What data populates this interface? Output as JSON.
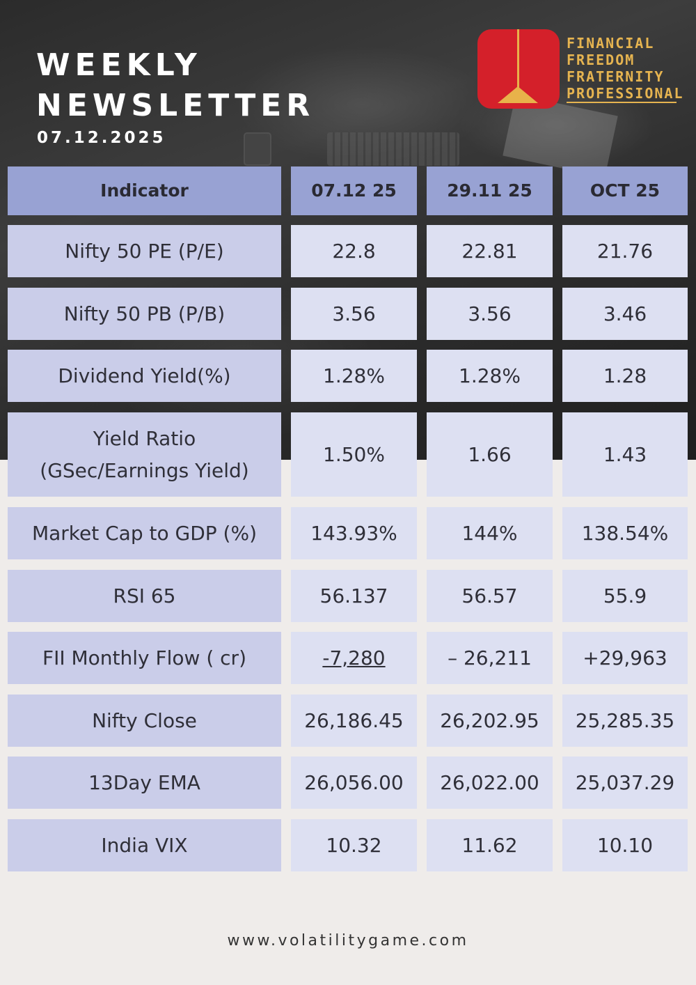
{
  "header": {
    "title_line1": "WEEKLY",
    "title_line2": "NEWSLETTER",
    "date": "07.12.2025"
  },
  "brand": {
    "lines": [
      "FINANCIAL",
      "FREEDOM",
      "FRATERNITY",
      "PROFESSIONAL"
    ],
    "logo_color": "#d4202a",
    "accent_color": "#e6b450"
  },
  "table": {
    "columns": [
      "Indicator",
      "07.12 25",
      "29.11 25",
      "OCT 25"
    ],
    "rows": [
      {
        "label": "Nifty 50 PE (P/E)",
        "v1": "22.8",
        "v2": "22.81",
        "v3": "21.76"
      },
      {
        "label": "Nifty 50 PB (P/B)",
        "v1": "3.56",
        "v2": "3.56",
        "v3": "3.46"
      },
      {
        "label": "Dividend Yield(%)",
        "v1": "1.28%",
        "v2": "1.28%",
        "v3": "1.28"
      },
      {
        "label": "Yield Ratio",
        "label2": "(GSec/Earnings Yield)",
        "v1": "1.50%",
        "v2": "1.66",
        "v3": "1.43"
      },
      {
        "label": "Market Cap to GDP (%)",
        "v1": "143.93%",
        "v2": "144%",
        "v3": "138.54%"
      },
      {
        "label": "RSI 65",
        "v1": "56.137",
        "v2": "56.57",
        "v3": "55.9"
      },
      {
        "label": "FII Monthly Flow ( cr)",
        "v1": "-7,280",
        "v2": "– 26,211",
        "v3": "+29,963"
      },
      {
        "label": "Nifty Close",
        "v1": "26,186.45",
        "v2": "26,202.95",
        "v3": "25,285.35"
      },
      {
        "label": "13Day EMA",
        "v1": "26,056.00",
        "v2": "26,022.00",
        "v3": "25,037.29"
      },
      {
        "label": "India VIX",
        "v1": "10.32",
        "v2": "11.62",
        "v3": "10.10"
      }
    ]
  },
  "footer": {
    "website": "www.volatilitygame.com"
  },
  "colors": {
    "header_cell": "#98a2d3",
    "label_cell": "#cacde9",
    "value_cell": "#dde0f2",
    "page_background": "#efecea"
  }
}
